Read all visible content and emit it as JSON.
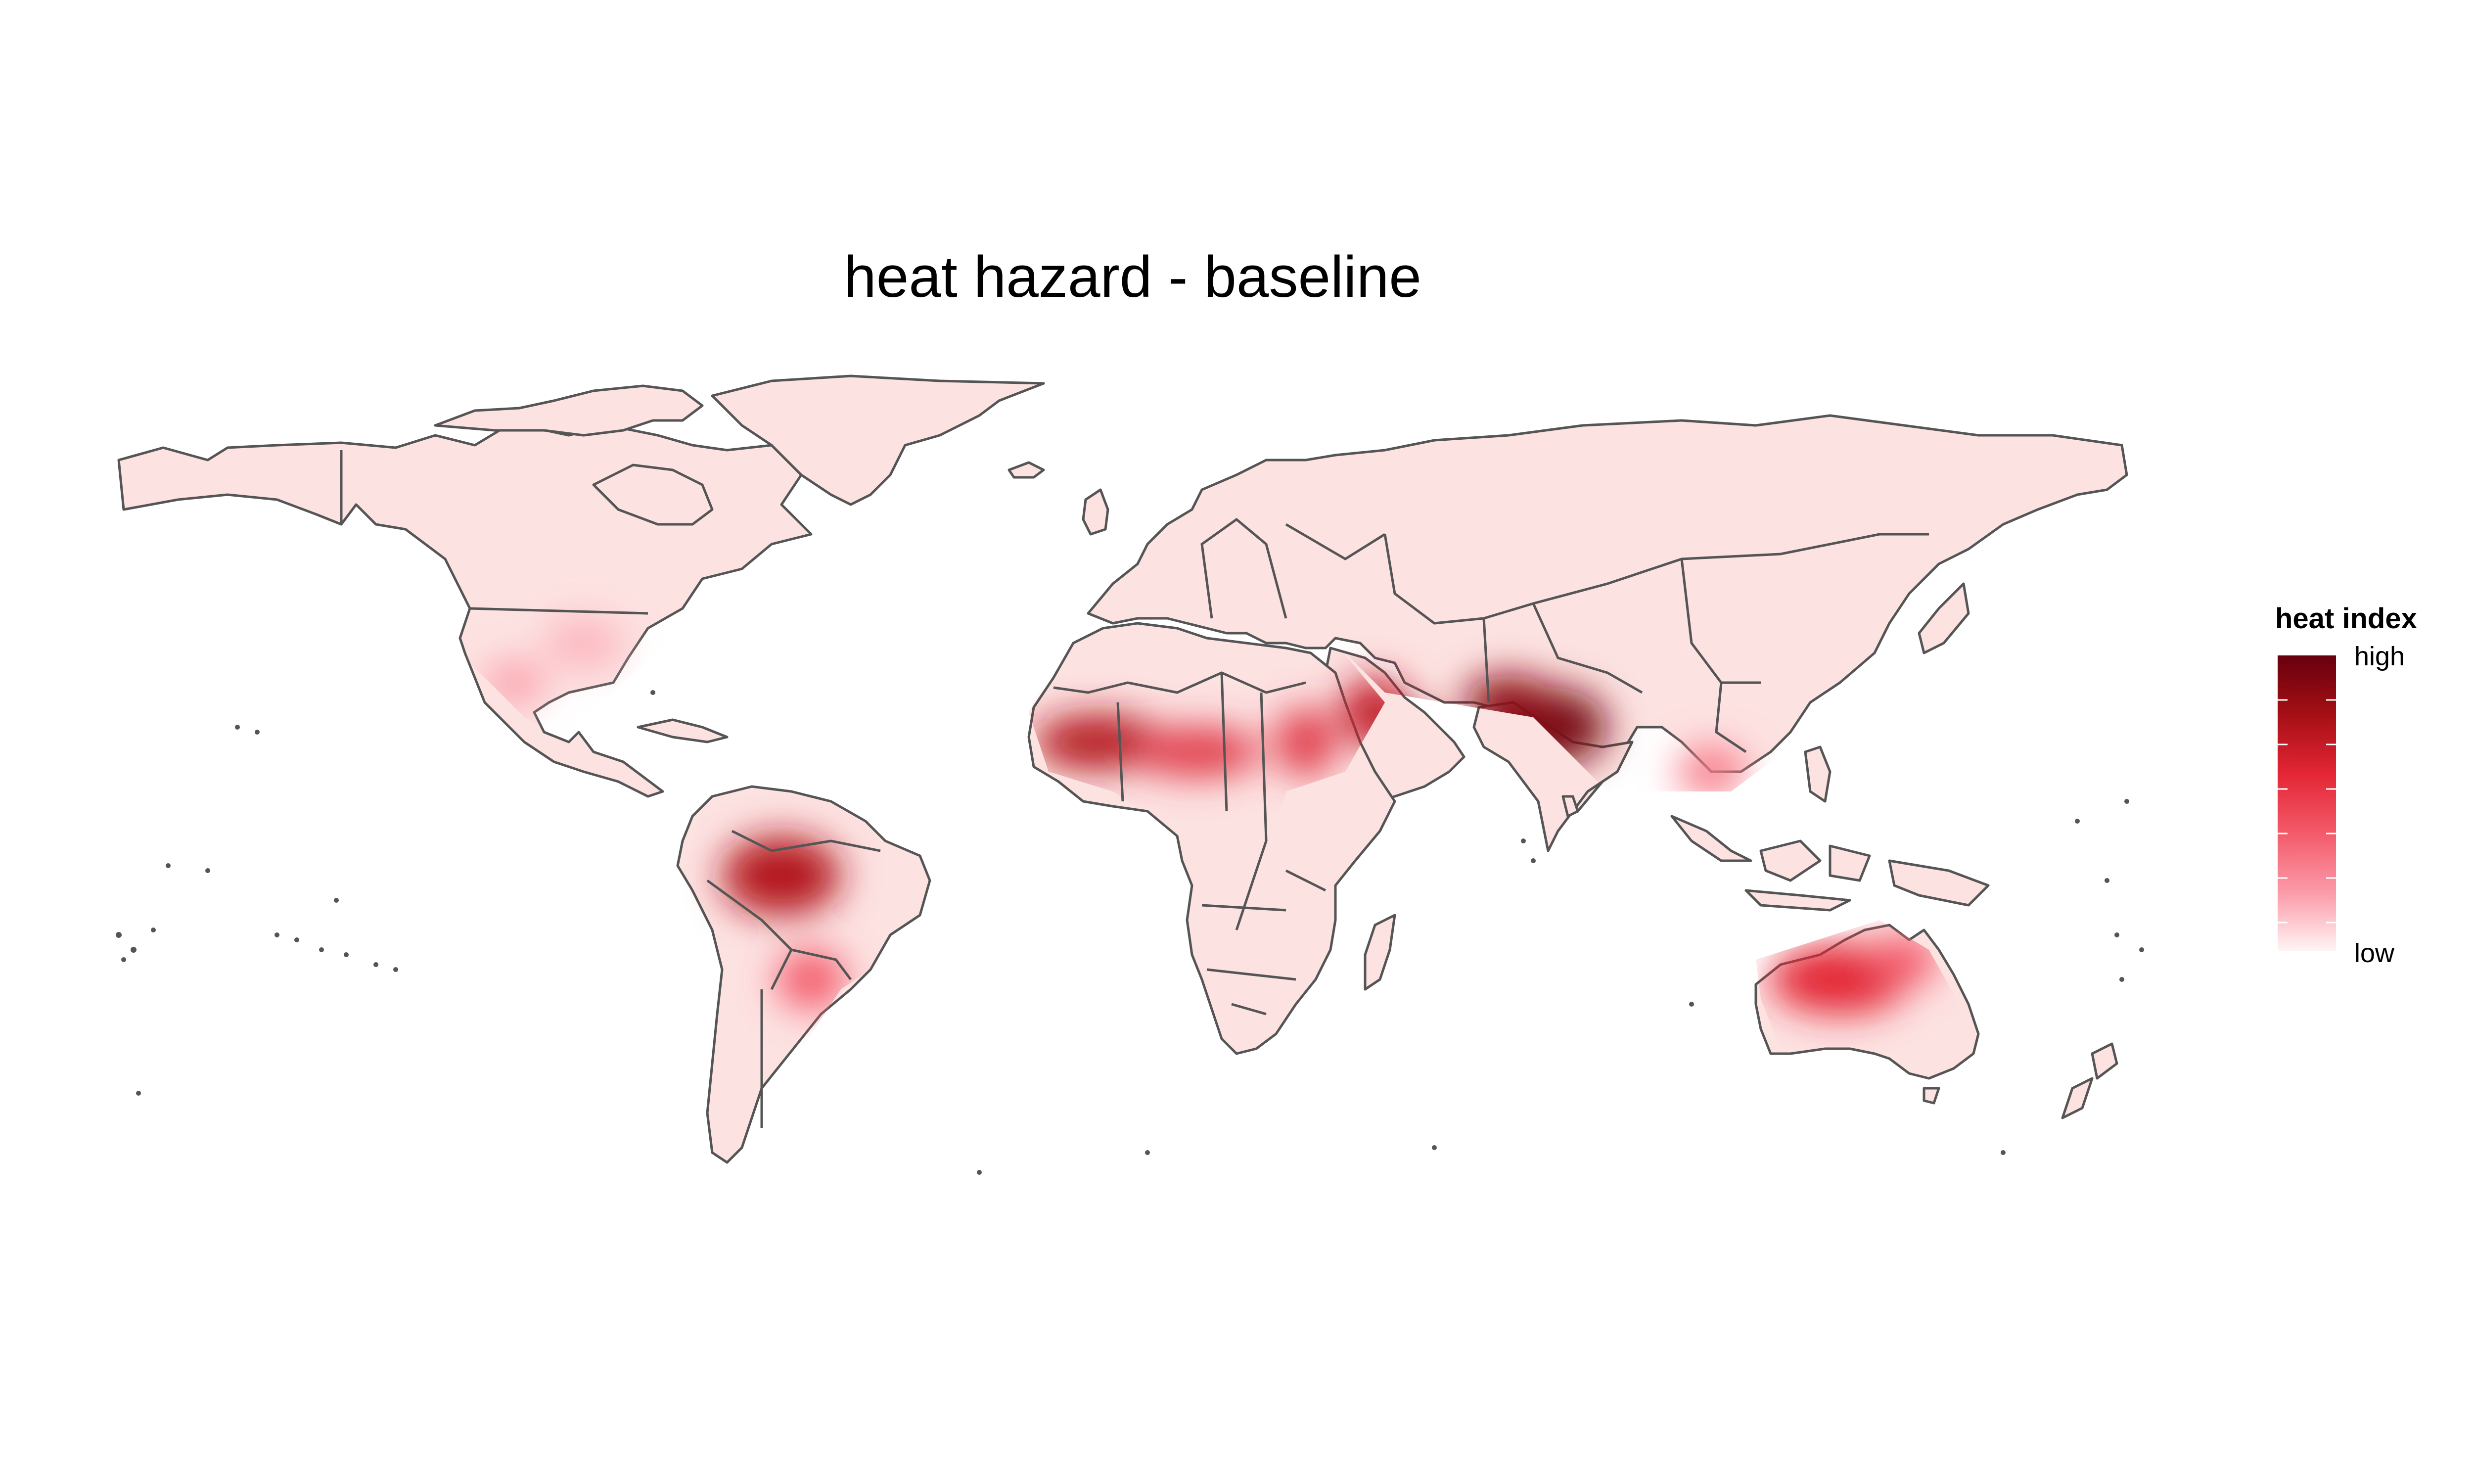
{
  "title": "heat hazard - baseline",
  "legend": {
    "title": "heat index",
    "high_label": "high",
    "low_label": "low",
    "colors": [
      "#67000d",
      "#a50f15",
      "#e32636",
      "#f35a6a",
      "#fb9aa8",
      "#fde2e2",
      "#fff5f5"
    ]
  },
  "map": {
    "land_color": "#fde2e2",
    "border_color": "#555555",
    "hotspots": [
      {
        "region": "South Asia",
        "level": 1.0
      },
      {
        "region": "Arabian Peninsula",
        "level": 0.85
      },
      {
        "region": "Sahel",
        "level": 0.8
      },
      {
        "region": "Amazon Basin",
        "level": 0.85
      },
      {
        "region": "Sudan",
        "level": 0.6
      },
      {
        "region": "Australia",
        "level": 0.6
      },
      {
        "region": "Southeast Asia",
        "level": 0.4
      },
      {
        "region": "Mexico",
        "level": 0.3
      }
    ]
  }
}
